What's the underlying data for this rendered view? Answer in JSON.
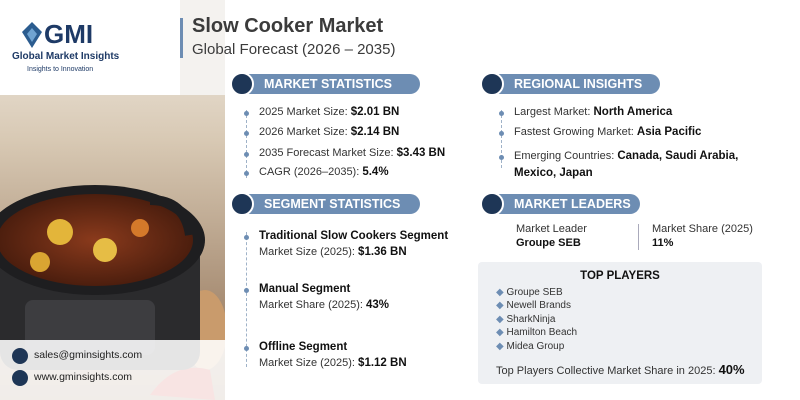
{
  "logo": {
    "name": "GMI",
    "line1": "Global Market Insights",
    "line2": "Insights to Innovation"
  },
  "header": {
    "title": "Slow Cooker Market",
    "subtitle": "Global Forecast (2026 – 2035)"
  },
  "market_statistics": {
    "heading": "MARKET STATISTICS",
    "items": [
      {
        "label": "2025 Market Size:",
        "value": "$2.01 BN"
      },
      {
        "label": "2026 Market Size:",
        "value": "$2.14 BN"
      },
      {
        "label": "2035 Forecast Market Size:",
        "value": "$3.43 BN"
      },
      {
        "label": "CAGR (2026–2035):",
        "value": "5.4%"
      }
    ]
  },
  "regional_insights": {
    "heading": "REGIONAL INSIGHTS",
    "items": [
      {
        "label": "Largest Market:",
        "value": "North America"
      },
      {
        "label": "Fastest Growing Market:",
        "value": "Asia Pacific"
      },
      {
        "label": "Emerging Countries:",
        "value": "Canada, Saudi Arabia,",
        "value2": "Mexico, Japan"
      }
    ]
  },
  "segment_statistics": {
    "heading": "SEGMENT STATISTICS",
    "items": [
      {
        "name": "Traditional Slow Cookers Segment",
        "label": "Market Size (2025):",
        "value": "$1.36 BN"
      },
      {
        "name": "Manual Segment",
        "label": "Market Share (2025):",
        "value": "43%"
      },
      {
        "name": "Offline Segment",
        "label": "Market Size (2025):",
        "value": "$1.12 BN"
      }
    ]
  },
  "market_leaders": {
    "heading": "MARKET LEADERS",
    "leader_label": "Market Leader",
    "leader": "Groupe SEB",
    "share_label": "Market Share (2025)",
    "share": "11%"
  },
  "top_players": {
    "heading": "TOP PLAYERS",
    "players": [
      "Groupe SEB",
      "Newell Brands",
      "SharkNinja",
      "Hamilton Beach",
      "Midea Group"
    ],
    "footer_label": "Top Players Collective Market Share in 2025:",
    "footer_value": "40%"
  },
  "contact": {
    "email": "sales@gminsights.com",
    "website": "www.gminsights.com"
  }
}
